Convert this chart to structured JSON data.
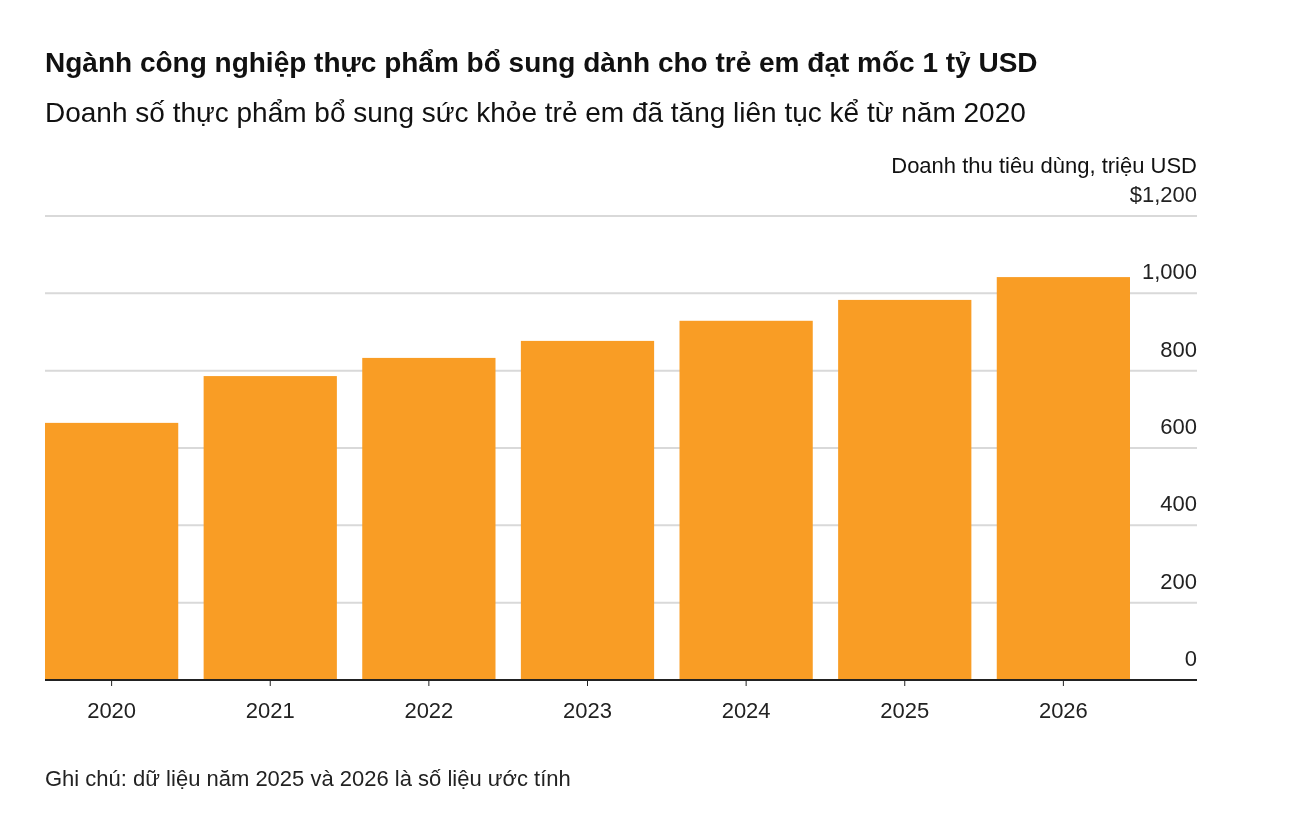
{
  "chart_data": {
    "type": "bar",
    "title": "Ngành công nghiệp thực phẩm bổ sung dành cho trẻ em đạt mốc 1 tỷ USD",
    "subtitle": "Doanh số thực phẩm bổ sung sức khỏe trẻ em đã tăng liên tục kể từ năm 2020",
    "ylabel": "Doanh thu tiêu dùng, triệu USD",
    "categories": [
      "2020",
      "2021",
      "2022",
      "2023",
      "2024",
      "2025",
      "2026"
    ],
    "values": [
      665,
      786,
      833,
      877,
      929,
      983,
      1042
    ],
    "color": "#f99d25",
    "ylim": [
      0,
      1200
    ],
    "yticks": [
      0,
      200,
      400,
      600,
      800,
      {
        "value": 1000,
        "label": "1,000"
      },
      {
        "value": 1200,
        "label": "$1,200"
      }
    ],
    "grid": "y",
    "annotations": [
      "Ghi chú: dữ liệu năm 2025 và 2026 là số liệu ước tính"
    ]
  }
}
